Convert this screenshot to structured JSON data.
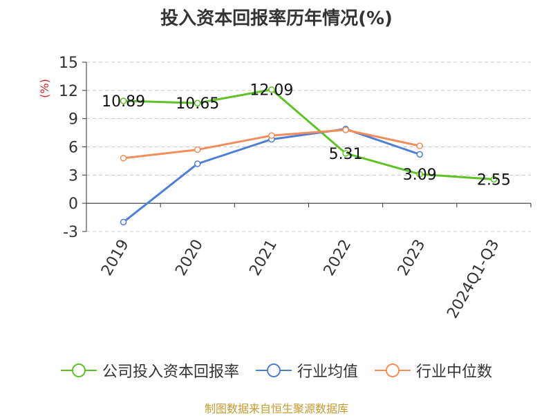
{
  "chart_data": {
    "type": "line",
    "title": "投入资本回报率历年情况(%)",
    "ylabel": "(%)",
    "xlabel": "",
    "categories": [
      "2019",
      "2020",
      "2021",
      "2022",
      "2023",
      "2024Q1-Q3"
    ],
    "yticks": [
      15,
      12,
      9,
      6,
      3,
      0,
      -3
    ],
    "ylim": [
      -3,
      15
    ],
    "grid": "horizontal dashed",
    "legend_position": "bottom",
    "series": [
      {
        "name": "公司投入资本回报率",
        "color": "#5cc324",
        "values": [
          10.89,
          10.65,
          12.09,
          5.31,
          3.09,
          2.55
        ],
        "labels": [
          "10.89",
          "10.65",
          "12.09",
          "5.31",
          "3.09",
          "2.55"
        ]
      },
      {
        "name": "行业均值",
        "color": "#4e7fd8",
        "values": [
          -2.0,
          4.2,
          6.8,
          7.9,
          5.2,
          null
        ]
      },
      {
        "name": "行业中位数",
        "color": "#f58d5a",
        "values": [
          4.8,
          5.7,
          7.2,
          7.8,
          6.1,
          null
        ]
      }
    ]
  },
  "footer": {
    "source": "制图数据来自恒生聚源数据库"
  }
}
